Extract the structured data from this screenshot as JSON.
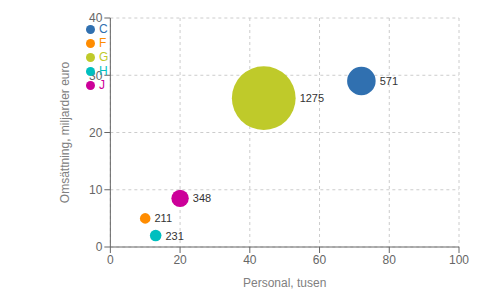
{
  "chart_data": {
    "type": "scatter",
    "xlabel": "Personal, tusen",
    "ylabel": "Omsättning, miljarder euro",
    "xlim": [
      0,
      100
    ],
    "ylim": [
      0,
      40
    ],
    "xticks": [
      0,
      20,
      40,
      60,
      80,
      100
    ],
    "yticks": [
      0,
      10,
      20,
      30,
      40
    ],
    "grid": true,
    "legend": "upper left",
    "data_labels": true,
    "series": [
      {
        "name": "C",
        "color": "#3070B0",
        "x": [
          72
        ],
        "y": [
          29
        ],
        "size": [
          571
        ]
      },
      {
        "name": "G",
        "color": "#BFCA2A",
        "x": [
          44
        ],
        "y": [
          26
        ],
        "size": [
          1275
        ]
      },
      {
        "name": "J",
        "color": "#CC0099",
        "x": [
          20
        ],
        "y": [
          8.5
        ],
        "size": [
          348
        ]
      },
      {
        "name": "F",
        "color": "#FF8C00",
        "x": [
          10
        ],
        "y": [
          5
        ],
        "size": [
          211
        ]
      },
      {
        "name": "H",
        "color": "#00BFBF",
        "x": [
          13
        ],
        "y": [
          2
        ],
        "size": [
          231
        ]
      }
    ]
  }
}
